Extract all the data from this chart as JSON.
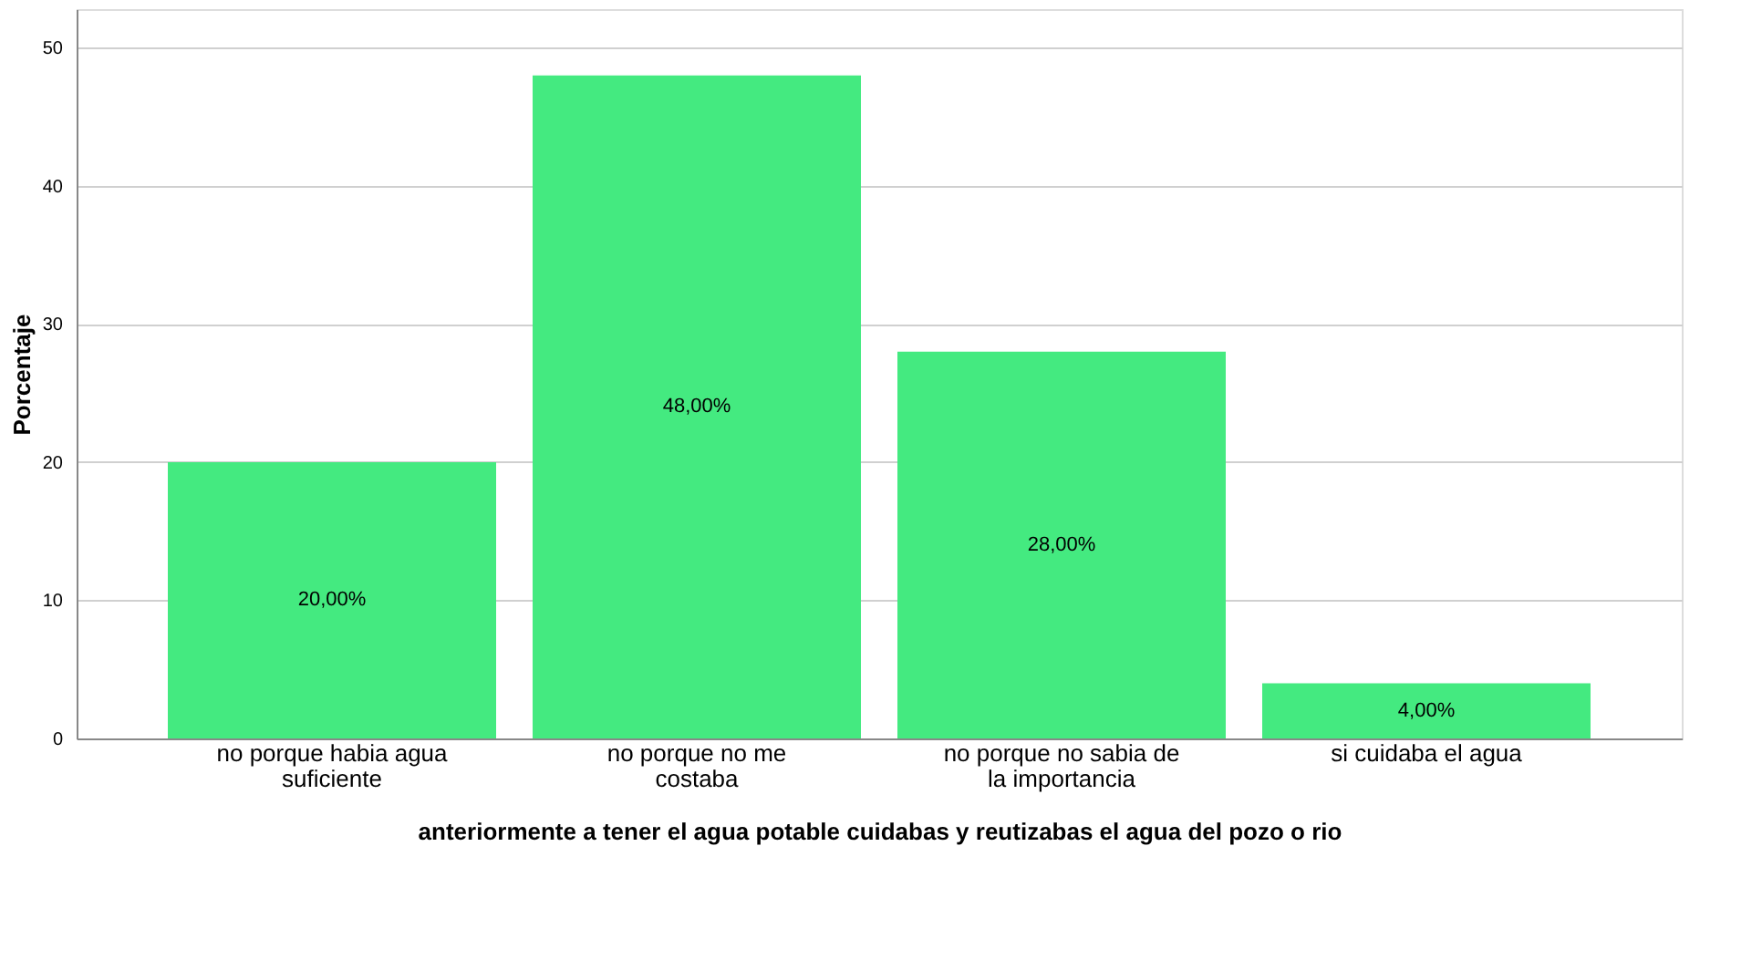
{
  "chart_data": {
    "type": "bar",
    "xlabel": "anteriormente a tener el agua potable cuidabas y reutizabas el agua del pozo o rio",
    "ylabel": "Porcentaje",
    "categories": [
      "no  porque habia agua suficiente",
      "no porque no me costaba",
      "no porque no sabia de la importancia",
      "si cuidaba el agua"
    ],
    "values": [
      20,
      48,
      28,
      4
    ],
    "value_labels": [
      "20,00%",
      "48,00%",
      "28,00%",
      "4,00%"
    ],
    "color": "#44ea80",
    "ylim": [
      0,
      52.8
    ],
    "yticks": [
      0,
      10,
      20,
      30,
      40,
      50
    ],
    "grid": "y"
  }
}
